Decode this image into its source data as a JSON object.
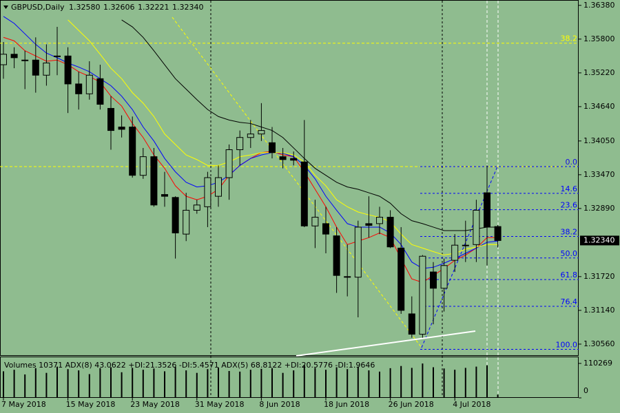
{
  "chart_data": {
    "type": "candlestick",
    "header": {
      "symbol": "GBPUSD,Daily",
      "ohlc": [
        "1.32580",
        "1.32606",
        "1.32221",
        "1.32340"
      ]
    },
    "categories": [
      "7 May 2018",
      null,
      null,
      null,
      null,
      null,
      "15 May 2018",
      null,
      null,
      null,
      null,
      null,
      "23 May 2018",
      null,
      null,
      null,
      null,
      null,
      "31 May 2018",
      null,
      null,
      null,
      null,
      null,
      "8 Jun 2018",
      null,
      null,
      null,
      null,
      null,
      "18 Jun 2018",
      null,
      null,
      null,
      null,
      null,
      "26 Jun 2018",
      null,
      null,
      null,
      null,
      null,
      "4 Jul 2018",
      null,
      null,
      null,
      null
    ],
    "open": [
      1.3536,
      1.3554,
      1.3544,
      1.3544,
      1.3518,
      1.3551,
      1.3551,
      1.3503,
      1.3486,
      1.3512,
      1.3461,
      1.3429,
      1.3429,
      1.3346,
      1.3378,
      1.3313,
      1.3308,
      1.3245,
      1.3286,
      1.3292,
      1.331,
      1.3342,
      1.339,
      1.3411,
      1.3417,
      1.3402,
      1.3378,
      1.3375,
      1.3369,
      1.3259,
      1.3263,
      1.3242,
      1.3171,
      1.3171,
      1.3263,
      1.3263,
      1.3274,
      1.3221,
      1.3108,
      1.3073,
      1.318,
      1.3152,
      1.32,
      1.3225,
      1.3227,
      1.3316,
      1.3258
    ],
    "high": [
      1.3575,
      1.3566,
      1.356,
      1.3583,
      1.3571,
      1.3601,
      1.3566,
      1.3524,
      1.3542,
      1.3536,
      1.3482,
      1.3449,
      1.3447,
      1.3393,
      1.3393,
      1.3352,
      1.331,
      1.3316,
      1.3304,
      1.3352,
      1.3363,
      1.3399,
      1.3423,
      1.3441,
      1.347,
      1.3429,
      1.3393,
      1.3387,
      1.3441,
      1.3304,
      1.3292,
      1.3257,
      1.3227,
      1.3268,
      1.331,
      1.3292,
      1.3286,
      1.3257,
      1.3138,
      1.3209,
      1.3197,
      1.3203,
      1.3245,
      1.3268,
      1.3304,
      1.3363,
      1.32606
    ],
    "low": [
      1.3512,
      1.353,
      1.3494,
      1.3488,
      1.35,
      1.3518,
      1.3453,
      1.3459,
      1.3476,
      1.3459,
      1.339,
      1.3411,
      1.3342,
      1.334,
      1.3292,
      1.3292,
      1.3203,
      1.3233,
      1.328,
      1.3257,
      1.3292,
      1.3304,
      1.3363,
      1.3393,
      1.3405,
      1.3375,
      1.3358,
      1.3363,
      1.3257,
      1.3221,
      1.3212,
      1.3144,
      1.3138,
      1.3102,
      1.3239,
      1.3245,
      1.3221,
      1.3108,
      1.3067,
      1.3067,
      1.309,
      1.3112,
      1.318,
      1.3197,
      1.3197,
      1.3191,
      1.32221
    ],
    "close": [
      1.3554,
      1.3548,
      1.3543,
      1.3518,
      1.3539,
      1.355,
      1.3503,
      1.3486,
      1.3518,
      1.3468,
      1.3423,
      1.3425,
      1.3346,
      1.3378,
      1.3295,
      1.331,
      1.3247,
      1.3286,
      1.3295,
      1.3342,
      1.3342,
      1.339,
      1.3411,
      1.3417,
      1.3423,
      1.3385,
      1.3373,
      1.3372,
      1.3259,
      1.3274,
      1.3245,
      1.3174,
      1.3172,
      1.3257,
      1.326,
      1.3274,
      1.3223,
      1.3114,
      1.3073,
      1.3207,
      1.3152,
      1.3191,
      1.3226,
      1.3226,
      1.3286,
      1.3257,
      1.3234
    ],
    "series": [
      {
        "color": "#ff0000",
        "values": [
          1.3583,
          1.3577,
          1.356,
          1.3551,
          1.3542,
          1.3544,
          1.3536,
          1.3524,
          1.3516,
          1.3506,
          1.3482,
          1.3465,
          1.3435,
          1.3411,
          1.3381,
          1.3358,
          1.3328,
          1.331,
          1.3304,
          1.331,
          1.3322,
          1.3346,
          1.3363,
          1.3375,
          1.3385,
          1.3387,
          1.3381,
          1.3378,
          1.3352,
          1.3322,
          1.3292,
          1.3257,
          1.3227,
          1.3233,
          1.3239,
          1.3247,
          1.3239,
          1.3203,
          1.3168,
          1.3162,
          1.3174,
          1.3186,
          1.32,
          1.3209,
          1.3221,
          1.3239,
          1.3239
        ]
      },
      {
        "color": "#0000ff",
        "values": [
          1.3619,
          1.3607,
          1.3589,
          1.3571,
          1.3556,
          1.3548,
          1.3539,
          1.3532,
          1.3524,
          1.3512,
          1.35,
          1.3482,
          1.3459,
          1.3429,
          1.3405,
          1.3375,
          1.3352,
          1.3334,
          1.3326,
          1.3328,
          1.3334,
          1.3346,
          1.3363,
          1.3375,
          1.3381,
          1.3385,
          1.3384,
          1.3378,
          1.3363,
          1.334,
          1.331,
          1.3286,
          1.3263,
          1.3257,
          1.3257,
          1.3257,
          1.3247,
          1.3227,
          1.3197,
          1.3186,
          1.3188,
          1.3195,
          1.3203,
          1.3212,
          1.3221,
          1.3231,
          1.3233
        ]
      },
      {
        "color": "#ffff00",
        "values": [
          null,
          null,
          null,
          null,
          null,
          null,
          1.3613,
          1.3595,
          1.3577,
          1.3554,
          1.353,
          1.3512,
          1.3488,
          1.347,
          1.3447,
          1.3417,
          1.3399,
          1.3381,
          1.3373,
          1.3363,
          1.3363,
          1.3369,
          1.3378,
          1.3381,
          1.3385,
          1.3385,
          1.3385,
          1.3381,
          1.3369,
          1.3346,
          1.3328,
          1.3304,
          1.3292,
          1.3283,
          1.3278,
          1.3274,
          1.3266,
          1.3245,
          1.3227,
          1.3221,
          1.3215,
          1.3209,
          1.3212,
          1.3219,
          1.3223,
          1.3227,
          1.3227
        ]
      },
      {
        "color": "#000000",
        "values": [
          null,
          null,
          null,
          null,
          null,
          null,
          null,
          null,
          null,
          null,
          null,
          1.3613,
          1.3601,
          1.3583,
          1.356,
          1.3536,
          1.3512,
          1.3494,
          1.3476,
          1.3459,
          1.3447,
          1.3441,
          1.3437,
          1.3435,
          1.3429,
          1.3423,
          1.3411,
          1.3393,
          1.3375,
          1.3358,
          1.3346,
          1.3334,
          1.3326,
          1.3322,
          1.3316,
          1.331,
          1.3298,
          1.328,
          1.3268,
          1.3263,
          1.3257,
          1.3251,
          1.3251,
          1.3251,
          1.3254,
          1.3257,
          1.3257
        ]
      }
    ],
    "ylim": [
      1.3037,
      1.3646
    ],
    "yticks": [
      {
        "value": 1.3638,
        "label": "1.36380"
      },
      {
        "value": 1.358,
        "label": "1.35800"
      },
      {
        "value": 1.3522,
        "label": "1.35220"
      },
      {
        "value": 1.3464,
        "label": "1.34640"
      },
      {
        "value": 1.3405,
        "label": "1.34050"
      },
      {
        "value": 1.3347,
        "label": "1.33470"
      },
      {
        "value": 1.3289,
        "label": "1.32890"
      },
      {
        "value": 1.3172,
        "label": "1.31720"
      },
      {
        "value": 1.3114,
        "label": "1.31140"
      },
      {
        "value": 1.3056,
        "label": "1.30560"
      }
    ],
    "last_price": {
      "value": 1.3234,
      "label": "1.32340"
    },
    "up_color": "#8fbc8f",
    "down_color": "#000000",
    "fib_blue": {
      "color": "#0000ff",
      "levels": [
        {
          "label": "0.0",
          "value": 1.3361
        },
        {
          "label": "14.6",
          "value": 1.3315
        },
        {
          "label": "23.6",
          "value": 1.3287
        },
        {
          "label": "38.2",
          "value": 1.3241
        },
        {
          "label": "50.0",
          "value": 1.3204
        },
        {
          "label": "61.8",
          "value": 1.3167
        },
        {
          "label": "76.4",
          "value": 1.3121
        },
        {
          "label": "100.0",
          "value": 1.3047
        }
      ]
    },
    "fib_yellow": {
      "color": "#ffff00",
      "levels": [
        {
          "label": "38.2",
          "value": 1.3573
        },
        {
          "label": "0.0",
          "value": 1.3361
        }
      ]
    },
    "volume_header": "Volumes 10371  ADX(8) 43.0622 +DI:21.3526 -DI:5.4571  ADX(5) 68.8122 +DI:20.5776 -DI:1.9646",
    "volumes": {
      "axis": "y2",
      "color": "#000000",
      "values": [
        85000,
        90000,
        75000,
        95000,
        80000,
        100000,
        92000,
        88000,
        76000,
        95000,
        98000,
        82000,
        96000,
        90000,
        94000,
        85000,
        99000,
        88000,
        80000,
        92000,
        97000,
        86000,
        84000,
        90000,
        93000,
        95000,
        80000,
        88000,
        105000,
        96000,
        90000,
        98000,
        92000,
        100000,
        88000,
        84000,
        95000,
        102000,
        96000,
        110000,
        98000,
        94000,
        90000,
        96000,
        100000,
        104000,
        10371
      ]
    },
    "y2lim": [
      0,
      130000
    ],
    "y2ticks": [
      110269,
      0
    ]
  }
}
